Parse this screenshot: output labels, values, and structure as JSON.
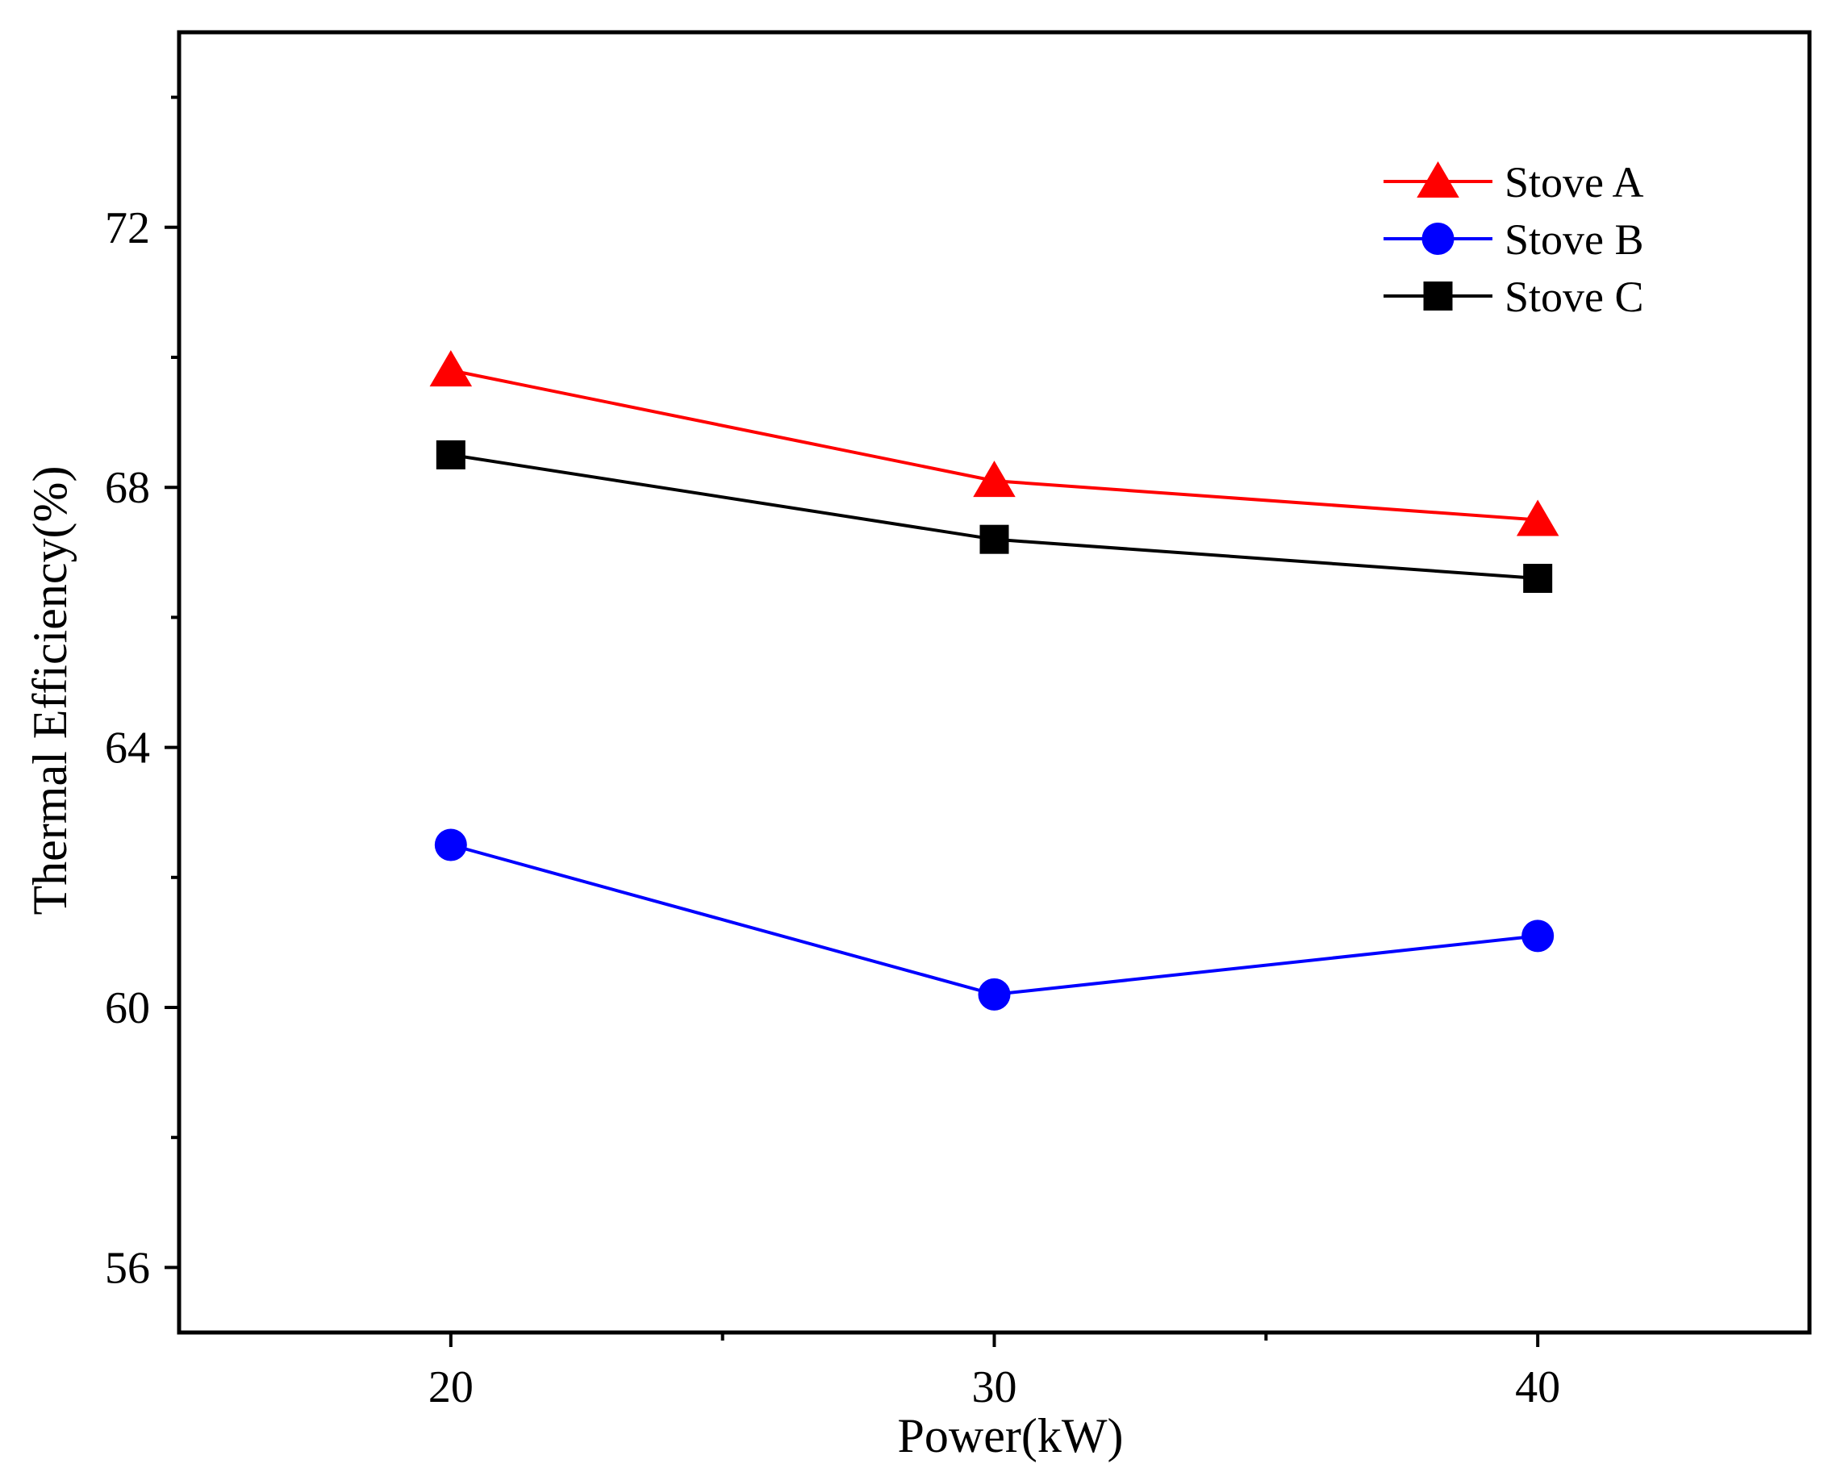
{
  "chart_data": {
    "type": "line",
    "title": "",
    "xlabel": "Power(kW)",
    "ylabel": "Thermal Efficiency(%)",
    "x": [
      20,
      30,
      40
    ],
    "xlim": [
      15,
      45
    ],
    "ylim": [
      55,
      75
    ],
    "xticks": [
      20,
      30,
      40
    ],
    "xtick_labels": [
      "20",
      "30",
      "40"
    ],
    "x_minor_ticks": [
      25,
      35
    ],
    "yticks": [
      56,
      60,
      64,
      68,
      72
    ],
    "ytick_labels": [
      "56",
      "60",
      "64",
      "68",
      "72"
    ],
    "y_minor_ticks": [
      58,
      62,
      66,
      70,
      74
    ],
    "grid": false,
    "legend_position": "top-right",
    "series": [
      {
        "name": "Stove A",
        "values": [
          69.8,
          68.1,
          67.5
        ],
        "color": "#ff0000",
        "marker": "triangle"
      },
      {
        "name": "Stove B",
        "values": [
          62.5,
          60.2,
          61.1
        ],
        "color": "#0000ff",
        "marker": "circle"
      },
      {
        "name": "Stove C",
        "values": [
          68.5,
          67.2,
          66.6
        ],
        "color": "#000000",
        "marker": "square"
      }
    ]
  }
}
